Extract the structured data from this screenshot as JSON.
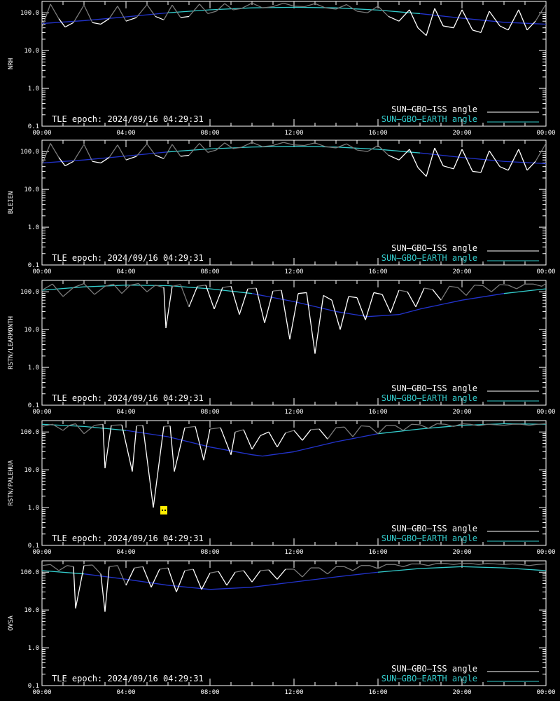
{
  "colors": {
    "background": "#000000",
    "axes": "#ffffff",
    "iss_day": "#ffffff",
    "iss_night": "#7a7a7a",
    "earth_day": "#33cccc",
    "earth_night": "#2233cc",
    "marker": "#ffee00"
  },
  "legend": {
    "iss_label": "SUN–GBO–ISS angle",
    "earth_label": "SUN–GBO–EARTH angle"
  },
  "epoch_text": "TLE epoch: 2024/09/16 04:29:31",
  "x_ticks": [
    "00:00",
    "04:00",
    "08:00",
    "12:00",
    "16:00",
    "20:00",
    "00:00"
  ],
  "y_ticks": [
    "100.0",
    "10.0",
    "1.0",
    "0.1"
  ],
  "chart_data": [
    {
      "type": "line",
      "ylabel": "NRH",
      "yscale": "log",
      "ylim": [
        0.1,
        200
      ],
      "xlim_hours": [
        0,
        24
      ],
      "series": [
        {
          "name": "SUN–GBO–ISS angle",
          "x_hours": [
            0.0,
            0.4,
            0.8,
            1.1,
            1.5,
            2.0,
            2.4,
            2.8,
            3.2,
            3.6,
            4.0,
            4.5,
            5.0,
            5.4,
            5.8,
            6.2,
            6.6,
            7.0,
            7.5,
            7.9,
            8.3,
            8.7,
            9.1,
            9.5,
            10.0,
            10.5,
            11.0,
            11.5,
            12.0,
            12.5,
            13.0,
            13.5,
            14.0,
            14.5,
            15.0,
            15.5,
            16.0,
            16.5,
            17.0,
            17.5,
            17.9,
            18.3,
            18.7,
            19.1,
            19.6,
            20.0,
            20.5,
            20.9,
            21.3,
            21.8,
            22.2,
            22.7,
            23.1,
            23.5,
            24.0
          ],
          "values": [
            40,
            170,
            70,
            42,
            55,
            160,
            55,
            50,
            70,
            150,
            60,
            75,
            165,
            80,
            65,
            160,
            75,
            80,
            170,
            95,
            110,
            175,
            120,
            130,
            180,
            135,
            145,
            180,
            150,
            145,
            175,
            135,
            125,
            165,
            110,
            100,
            150,
            80,
            60,
            120,
            40,
            25,
            130,
            45,
            40,
            120,
            35,
            30,
            110,
            45,
            35,
            120,
            35,
            60,
            170
          ]
        },
        {
          "name": "SUN–GBO–EARTH angle",
          "x_hours": [
            0,
            2,
            4,
            6,
            8,
            10,
            12,
            14,
            16,
            18,
            20,
            22,
            24
          ],
          "values": [
            52,
            62,
            78,
            100,
            120,
            135,
            140,
            135,
            118,
            95,
            72,
            56,
            50
          ]
        }
      ]
    },
    {
      "type": "line",
      "ylabel": "BLEIEN",
      "yscale": "log",
      "ylim": [
        0.1,
        200
      ],
      "xlim_hours": [
        0,
        24
      ],
      "series": [
        {
          "name": "SUN–GBO–ISS angle",
          "x_hours": [
            0.0,
            0.4,
            0.8,
            1.1,
            1.5,
            2.0,
            2.4,
            2.8,
            3.2,
            3.6,
            4.0,
            4.5,
            5.0,
            5.4,
            5.8,
            6.2,
            6.6,
            7.0,
            7.5,
            7.9,
            8.3,
            8.7,
            9.1,
            9.5,
            10.0,
            10.5,
            11.0,
            11.5,
            12.0,
            12.5,
            13.0,
            13.5,
            14.0,
            14.5,
            15.0,
            15.5,
            16.0,
            16.5,
            17.0,
            17.5,
            17.9,
            18.3,
            18.7,
            19.1,
            19.6,
            20.0,
            20.5,
            20.9,
            21.3,
            21.8,
            22.2,
            22.7,
            23.1,
            23.5,
            24.0
          ],
          "values": [
            45,
            165,
            70,
            42,
            55,
            155,
            55,
            50,
            70,
            150,
            60,
            75,
            160,
            80,
            65,
            155,
            75,
            80,
            165,
            95,
            110,
            170,
            120,
            130,
            175,
            135,
            145,
            175,
            150,
            145,
            170,
            135,
            125,
            160,
            110,
            100,
            145,
            80,
            60,
            115,
            38,
            22,
            125,
            42,
            35,
            115,
            30,
            28,
            105,
            40,
            32,
            115,
            32,
            55,
            165
          ]
        },
        {
          "name": "SUN–GBO–EARTH angle",
          "x_hours": [
            0,
            2,
            4,
            6,
            8,
            10,
            12,
            14,
            16,
            18,
            20,
            22,
            24
          ],
          "values": [
            50,
            60,
            76,
            98,
            118,
            132,
            138,
            132,
            115,
            92,
            70,
            55,
            48
          ]
        }
      ]
    },
    {
      "type": "line",
      "ylabel": "RSTN/LEARMONTH",
      "yscale": "log",
      "ylim": [
        0.1,
        200
      ],
      "xlim_hours": [
        0,
        24
      ],
      "series": [
        {
          "name": "SUN–GBO–ISS angle",
          "x_hours": [
            0.0,
            0.5,
            1.0,
            1.5,
            2.0,
            2.5,
            3.0,
            3.4,
            3.8,
            4.2,
            4.6,
            5.0,
            5.4,
            5.8,
            5.9,
            6.2,
            6.6,
            7.0,
            7.4,
            7.8,
            8.2,
            8.6,
            9.0,
            9.4,
            9.8,
            10.2,
            10.6,
            11.0,
            11.4,
            11.8,
            12.2,
            12.6,
            13.0,
            13.4,
            13.8,
            14.2,
            14.6,
            15.0,
            15.4,
            15.8,
            16.2,
            16.6,
            17.0,
            17.4,
            17.8,
            18.2,
            18.6,
            19.0,
            19.4,
            19.8,
            20.2,
            20.6,
            21.0,
            21.4,
            21.8,
            22.2,
            22.6,
            23.0,
            23.4,
            23.8,
            24.0
          ],
          "values": [
            110,
            160,
            75,
            130,
            165,
            85,
            140,
            160,
            90,
            150,
            165,
            100,
            150,
            130,
            11,
            140,
            155,
            40,
            140,
            150,
            35,
            130,
            140,
            25,
            120,
            125,
            15,
            105,
            110,
            5.5,
            90,
            95,
            2.3,
            80,
            60,
            10,
            75,
            70,
            18,
            95,
            85,
            28,
            110,
            100,
            40,
            125,
            115,
            60,
            140,
            130,
            80,
            150,
            145,
            100,
            155,
            150,
            120,
            160,
            160,
            140,
            165
          ]
        },
        {
          "name": "SUN–GBO–EARTH angle",
          "x_hours": [
            0,
            2,
            4,
            6,
            8,
            10,
            12,
            14,
            15.5,
            17,
            18,
            20,
            22,
            24
          ],
          "values": [
            110,
            135,
            150,
            145,
            120,
            90,
            55,
            30,
            22,
            25,
            35,
            60,
            90,
            120
          ]
        }
      ]
    },
    {
      "type": "line",
      "ylabel": "RSTN/PALEHUA",
      "yscale": "log",
      "ylim": [
        0.1,
        200
      ],
      "xlim_hours": [
        0,
        24
      ],
      "series": [
        {
          "name": "SUN–GBO–ISS angle",
          "x_hours": [
            0.0,
            0.5,
            1.0,
            1.3,
            1.6,
            2.0,
            2.5,
            2.9,
            3.0,
            3.3,
            3.8,
            4.3,
            4.5,
            4.8,
            5.3,
            5.8,
            6.1,
            6.3,
            6.8,
            7.3,
            7.7,
            8.0,
            8.5,
            9.0,
            9.2,
            9.6,
            10.0,
            10.4,
            10.8,
            11.2,
            11.6,
            12.0,
            12.4,
            12.8,
            13.2,
            13.6,
            14.0,
            14.4,
            14.8,
            15.2,
            15.6,
            16.0,
            16.4,
            16.8,
            17.2,
            17.6,
            18.0,
            18.4,
            18.8,
            19.2,
            19.6,
            20.0,
            20.4,
            20.8,
            21.2,
            21.6,
            22.0,
            22.4,
            22.8,
            23.2,
            23.6,
            24.0
          ],
          "values": [
            140,
            160,
            110,
            150,
            165,
            90,
            150,
            160,
            11,
            150,
            155,
            9,
            145,
            150,
            1.0,
            140,
            145,
            9,
            130,
            140,
            18,
            120,
            130,
            25,
            100,
            115,
            35,
            80,
            100,
            40,
            95,
            110,
            60,
            115,
            120,
            65,
            130,
            135,
            75,
            145,
            140,
            90,
            150,
            150,
            110,
            160,
            155,
            125,
            165,
            160,
            140,
            165,
            160,
            145,
            160,
            155,
            150,
            160,
            160,
            150,
            160,
            165
          ]
        },
        {
          "name": "SUN–GBO–EARTH angle",
          "x_hours": [
            0,
            2,
            4,
            6,
            8,
            10,
            10.5,
            12,
            14,
            16,
            18,
            20,
            22,
            24
          ],
          "values": [
            160,
            140,
            110,
            75,
            40,
            25,
            23,
            30,
            55,
            90,
            120,
            150,
            165,
            160
          ]
        }
      ]
    },
    {
      "type": "line",
      "ylabel": "OVSA",
      "yscale": "log",
      "ylim": [
        0.1,
        200
      ],
      "xlim_hours": [
        0,
        24
      ],
      "series": [
        {
          "name": "SUN–GBO–ISS angle",
          "x_hours": [
            0.0,
            0.4,
            0.8,
            1.2,
            1.5,
            1.6,
            2.0,
            2.4,
            2.8,
            3.0,
            3.2,
            3.6,
            4.0,
            4.4,
            4.8,
            5.2,
            5.6,
            6.0,
            6.4,
            6.8,
            7.2,
            7.6,
            8.0,
            8.4,
            8.8,
            9.2,
            9.6,
            10.0,
            10.4,
            10.8,
            11.2,
            11.6,
            12.0,
            12.4,
            12.8,
            13.2,
            13.6,
            14.0,
            14.4,
            14.8,
            15.2,
            15.6,
            16.0,
            16.4,
            16.8,
            17.2,
            17.6,
            18.0,
            18.4,
            18.8,
            19.2,
            19.6,
            20.0,
            20.4,
            20.8,
            21.2,
            21.6,
            22.0,
            22.4,
            22.8,
            23.2,
            23.6,
            24.0
          ],
          "values": [
            150,
            160,
            110,
            150,
            140,
            11,
            150,
            155,
            90,
            9,
            140,
            150,
            45,
            130,
            140,
            40,
            120,
            130,
            30,
            110,
            120,
            35,
            95,
            105,
            45,
            100,
            110,
            55,
            110,
            115,
            65,
            120,
            120,
            75,
            130,
            130,
            90,
            140,
            140,
            110,
            150,
            150,
            125,
            160,
            160,
            140,
            165,
            165,
            150,
            170,
            170,
            160,
            170,
            170,
            160,
            170,
            165,
            160,
            165,
            160,
            150,
            160,
            165
          ]
        },
        {
          "name": "SUN–GBO–EARTH angle",
          "x_hours": [
            0,
            2,
            4,
            6,
            8,
            10,
            12,
            14,
            16,
            18,
            20,
            22,
            24
          ],
          "values": [
            110,
            90,
            65,
            45,
            35,
            40,
            55,
            75,
            100,
            125,
            140,
            130,
            110
          ]
        }
      ]
    }
  ]
}
